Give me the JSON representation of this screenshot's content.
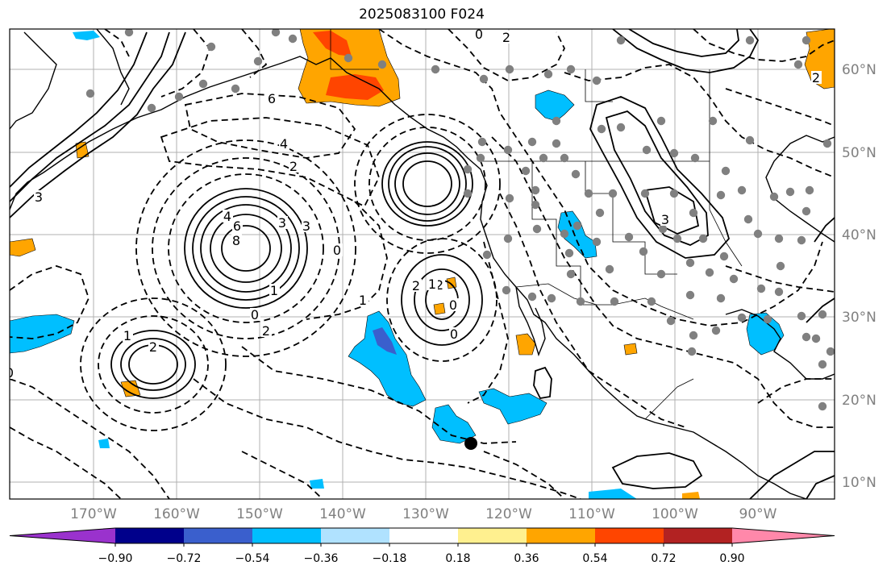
{
  "title": "2025083100 F024",
  "lat_labels": [
    "60°N",
    "50°N",
    "40°N",
    "30°N",
    "20°N",
    "10°N"
  ],
  "lon_labels": [
    "170°W",
    "160°W",
    "150°W",
    "140°W",
    "130°W",
    "120°W",
    "110°W",
    "100°W",
    "90°W"
  ],
  "colorbar": {
    "colors": [
      "#9a32cd",
      "#00008b",
      "#3a5fcd",
      "#00bfff",
      "#b0e2ff",
      "#ffffff",
      "#fff08f",
      "#ffa500",
      "#ff4500",
      "#b22222",
      "#ff88aa"
    ],
    "tick_labels": [
      "−0.90",
      "−0.72",
      "−0.54",
      "−0.36",
      "−0.18",
      "0.18",
      "0.36",
      "0.54",
      "0.72",
      "0.90"
    ]
  },
  "contour_labels": [
    "6",
    "4",
    "2",
    "3",
    "4",
    "6",
    "8",
    "3",
    "1",
    "0",
    "2",
    "1",
    "2",
    "2",
    "0",
    "0",
    "0",
    "2",
    "1",
    "2",
    "1",
    "0",
    "0",
    "3",
    "3",
    "2"
  ]
}
